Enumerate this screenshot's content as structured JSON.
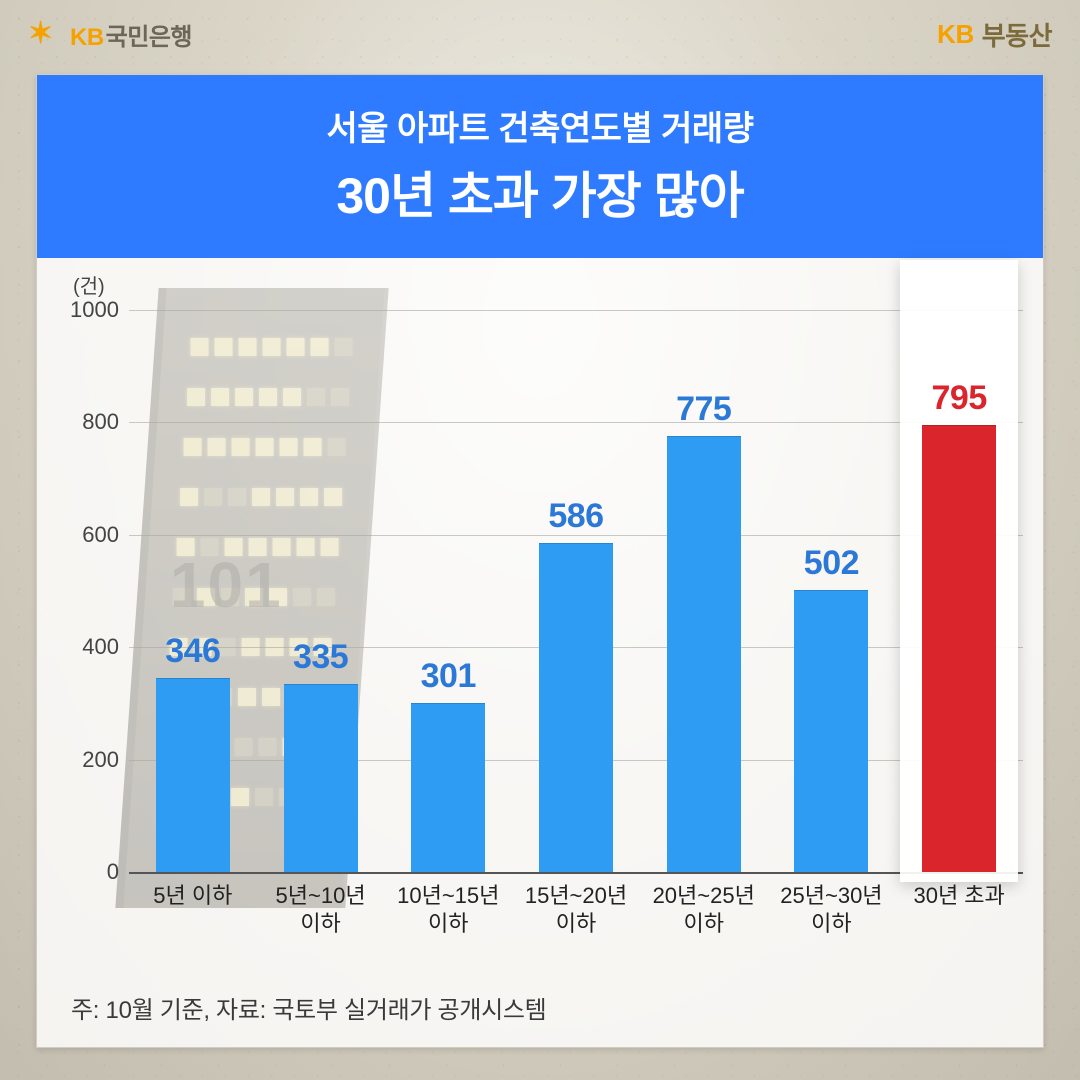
{
  "header": {
    "left_logo_prefix": "KB",
    "left_logo_text": "국민은행",
    "right_logo_prefix": "KB",
    "right_logo_text": "부동산",
    "left_color": "#6b6658",
    "accent_color": "#f5a100"
  },
  "title": {
    "subtitle": "서울 아파트 건축연도별 거래량",
    "main": "30년 초과 가장 많아",
    "band_color": "#2f7bff",
    "subtitle_fontsize": 34,
    "main_fontsize": 50
  },
  "chart": {
    "type": "bar",
    "unit_label": "(건)",
    "categories": [
      "5년 이하",
      "5년~10년\n이하",
      "10년~15년\n이하",
      "15년~20년\n이하",
      "20년~25년\n이하",
      "25년~30년\n이하",
      "30년 초과"
    ],
    "values": [
      346,
      335,
      301,
      586,
      775,
      502,
      795
    ],
    "bar_colors": [
      "#2f9cf4",
      "#2f9cf4",
      "#2f9cf4",
      "#2f9cf4",
      "#2f9cf4",
      "#2f9cf4",
      "#d9252b"
    ],
    "value_label_colors": [
      "#2b78d6",
      "#2b78d6",
      "#2b78d6",
      "#2b78d6",
      "#2b78d6",
      "#2b78d6",
      "#d9252b"
    ],
    "highlight_index": 6,
    "highlight_bg_color": "#ffffff",
    "ylim": [
      0,
      1000
    ],
    "yticks": [
      0,
      200,
      400,
      600,
      800,
      1000
    ],
    "grid_color": "#a9a69d",
    "axis_color": "#555555",
    "value_fontsize": 34,
    "xlabel_fontsize": 22,
    "ylabel_fontsize": 22,
    "bar_width_ratio": 0.58,
    "building_label": "101"
  },
  "footnote": "주: 10월 기준, 자료: 국토부 실거래가 공개시스템",
  "colors": {
    "card_bg": "rgba(255,255,255,0.82)",
    "panel_border": "#d0ccc0",
    "page_bg_top": "#d9d4c6",
    "page_bg_bottom": "#cfc9bb"
  }
}
